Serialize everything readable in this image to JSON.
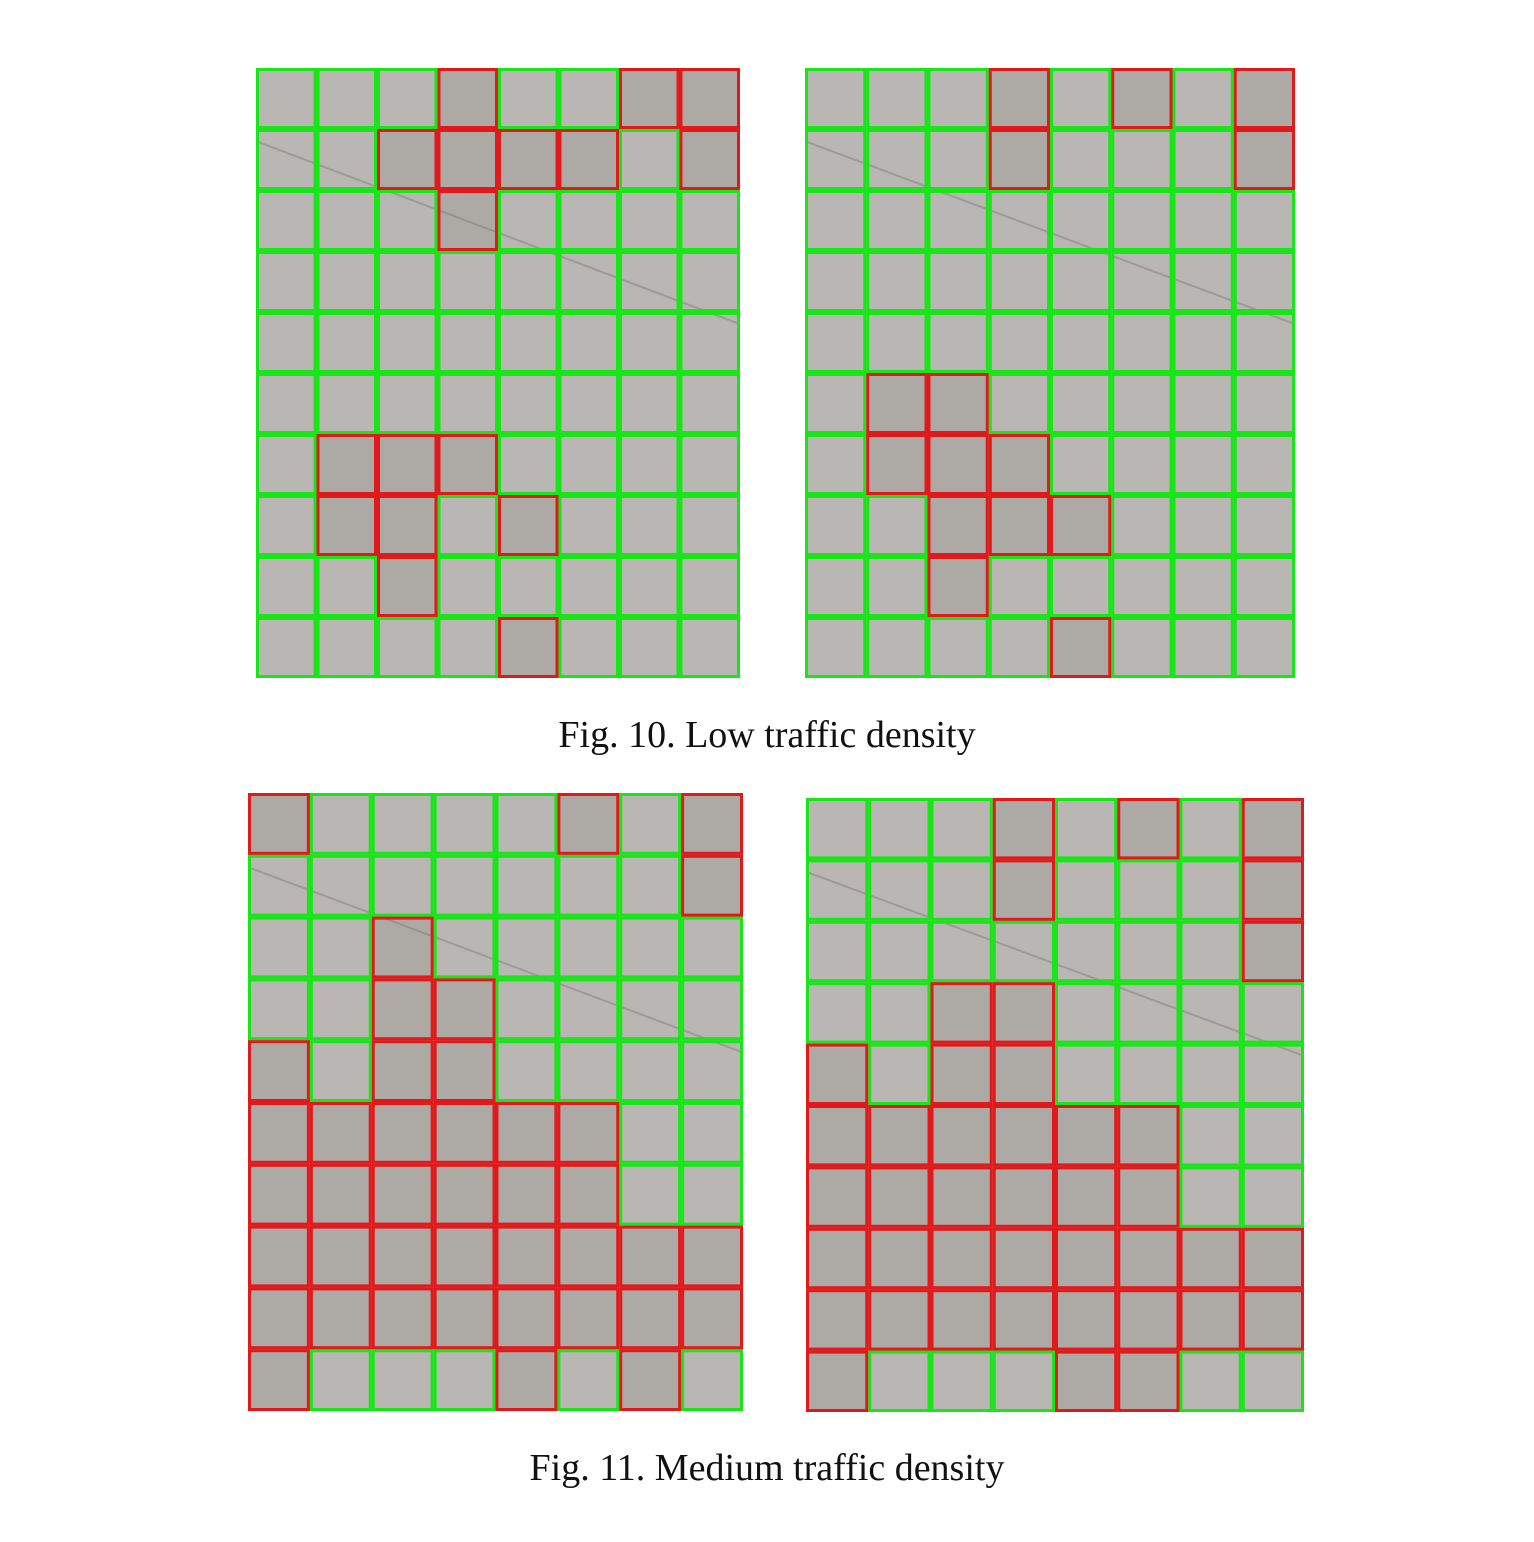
{
  "figures": [
    {
      "caption": "Fig. 10. Low traffic density",
      "panels": [
        {
          "name": "low-density-frame-a",
          "rows": 10,
          "cols": 8,
          "occupied": [
            [
              0,
              3
            ],
            [
              0,
              6
            ],
            [
              0,
              7
            ],
            [
              1,
              2
            ],
            [
              1,
              3
            ],
            [
              1,
              4
            ],
            [
              1,
              5
            ],
            [
              1,
              7
            ],
            [
              2,
              3
            ],
            [
              6,
              1
            ],
            [
              6,
              2
            ],
            [
              6,
              3
            ],
            [
              7,
              1
            ],
            [
              7,
              2
            ],
            [
              7,
              4
            ],
            [
              8,
              2
            ],
            [
              9,
              4
            ]
          ]
        },
        {
          "name": "low-density-frame-b",
          "rows": 10,
          "cols": 8,
          "occupied": [
            [
              0,
              3
            ],
            [
              0,
              5
            ],
            [
              0,
              7
            ],
            [
              1,
              3
            ],
            [
              1,
              7
            ],
            [
              5,
              1
            ],
            [
              5,
              2
            ],
            [
              6,
              1
            ],
            [
              6,
              2
            ],
            [
              6,
              3
            ],
            [
              7,
              2
            ],
            [
              7,
              3
            ],
            [
              7,
              4
            ],
            [
              8,
              2
            ],
            [
              9,
              4
            ]
          ]
        }
      ]
    },
    {
      "caption": "Fig. 11. Medium traffic density",
      "panels": [
        {
          "name": "medium-density-frame-a",
          "rows": 10,
          "cols": 8,
          "occupied": [
            [
              0,
              0
            ],
            [
              0,
              5
            ],
            [
              0,
              7
            ],
            [
              1,
              7
            ],
            [
              2,
              2
            ],
            [
              3,
              2
            ],
            [
              3,
              3
            ],
            [
              4,
              0
            ],
            [
              4,
              2
            ],
            [
              4,
              3
            ],
            [
              5,
              0
            ],
            [
              5,
              1
            ],
            [
              5,
              2
            ],
            [
              5,
              3
            ],
            [
              5,
              4
            ],
            [
              5,
              5
            ],
            [
              6,
              0
            ],
            [
              6,
              1
            ],
            [
              6,
              2
            ],
            [
              6,
              3
            ],
            [
              6,
              4
            ],
            [
              6,
              5
            ],
            [
              7,
              0
            ],
            [
              7,
              1
            ],
            [
              7,
              2
            ],
            [
              7,
              3
            ],
            [
              7,
              4
            ],
            [
              7,
              5
            ],
            [
              7,
              6
            ],
            [
              7,
              7
            ],
            [
              8,
              0
            ],
            [
              8,
              1
            ],
            [
              8,
              2
            ],
            [
              8,
              3
            ],
            [
              8,
              4
            ],
            [
              8,
              5
            ],
            [
              8,
              6
            ],
            [
              8,
              7
            ],
            [
              9,
              0
            ],
            [
              9,
              4
            ],
            [
              9,
              6
            ]
          ]
        },
        {
          "name": "medium-density-frame-b",
          "rows": 10,
          "cols": 8,
          "occupied": [
            [
              0,
              3
            ],
            [
              0,
              5
            ],
            [
              0,
              7
            ],
            [
              1,
              3
            ],
            [
              1,
              7
            ],
            [
              2,
              7
            ],
            [
              3,
              2
            ],
            [
              3,
              3
            ],
            [
              4,
              0
            ],
            [
              4,
              2
            ],
            [
              4,
              3
            ],
            [
              5,
              0
            ],
            [
              5,
              1
            ],
            [
              5,
              2
            ],
            [
              5,
              3
            ],
            [
              5,
              4
            ],
            [
              5,
              5
            ],
            [
              6,
              0
            ],
            [
              6,
              1
            ],
            [
              6,
              2
            ],
            [
              6,
              3
            ],
            [
              6,
              4
            ],
            [
              6,
              5
            ],
            [
              7,
              0
            ],
            [
              7,
              1
            ],
            [
              7,
              2
            ],
            [
              7,
              3
            ],
            [
              7,
              4
            ],
            [
              7,
              5
            ],
            [
              7,
              6
            ],
            [
              7,
              7
            ],
            [
              8,
              0
            ],
            [
              8,
              1
            ],
            [
              8,
              2
            ],
            [
              8,
              3
            ],
            [
              8,
              4
            ],
            [
              8,
              5
            ],
            [
              8,
              6
            ],
            [
              8,
              7
            ],
            [
              9,
              0
            ],
            [
              9,
              4
            ],
            [
              9,
              5
            ]
          ]
        }
      ]
    }
  ],
  "colors": {
    "free_cell": "#19e619",
    "occupied_cell": "#e01a1a",
    "road": "#b9b6b3"
  }
}
